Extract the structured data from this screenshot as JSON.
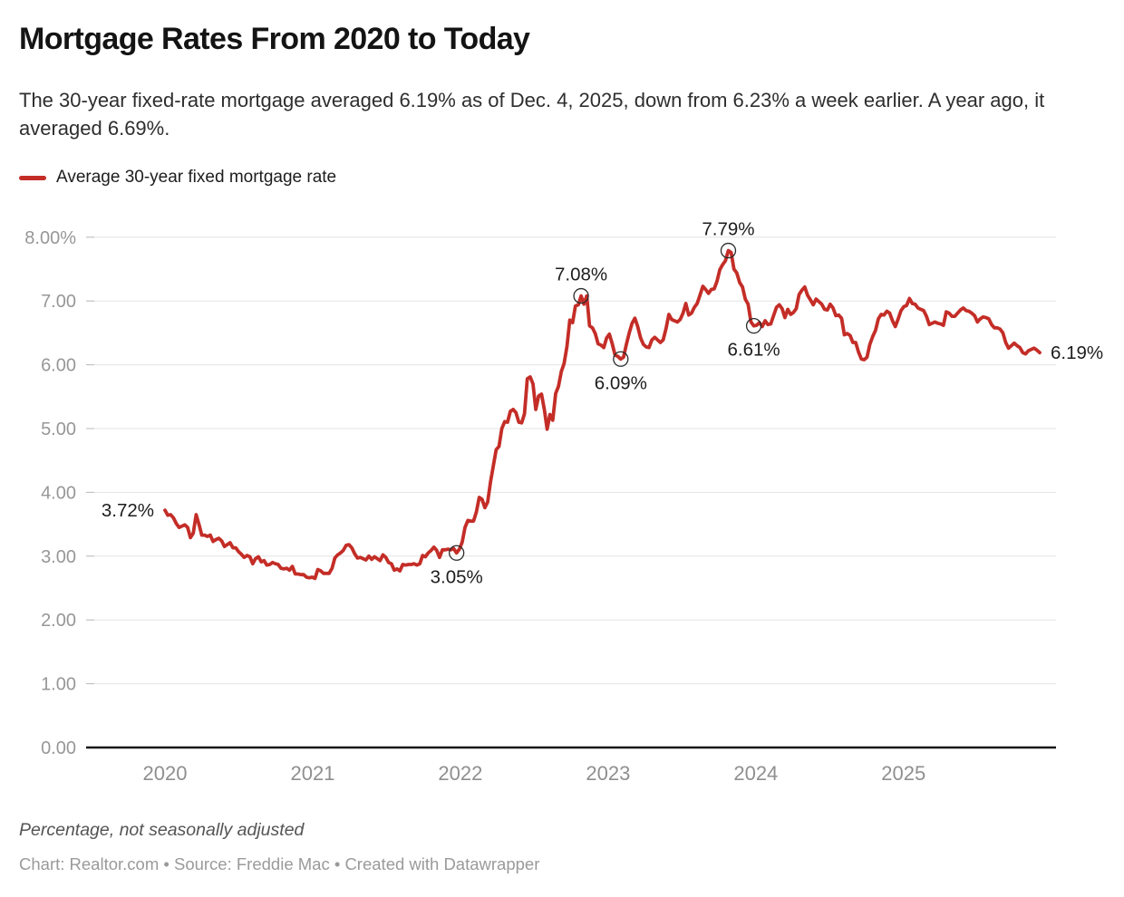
{
  "header": {
    "title": "Mortgage Rates From 2020 to Today",
    "description": "The 30-year fixed-rate mortgage averaged 6.19% as of Dec. 4, 2025, down from 6.23% a week earlier. A year ago, it averaged 6.69%."
  },
  "legend": {
    "items": [
      {
        "label": "Average 30-year fixed mortgage rate",
        "color": "#c42d27"
      }
    ]
  },
  "footer": {
    "note": "Percentage, not seasonally adjusted",
    "byline": "Chart: Realtor.com • Source: Freddie Mac • Created with Datawrapper"
  },
  "colors": {
    "line": "#c42d27",
    "grid": "#e4e4e4",
    "grid_tick": "#bbbbbb",
    "zero_axis": "#161616",
    "axis_label": "#979797",
    "x_axis_label": "#8f8f8f",
    "annotation": "#1d1d1d",
    "marker_stroke": "#2b2b2b"
  },
  "chart_data": {
    "type": "line",
    "title": "Mortgage Rates From 2020 to Today",
    "xlabel": "",
    "ylabel": "",
    "ylim": [
      0,
      8
    ],
    "grid": "horizontal",
    "legend_position": "top-left",
    "x_start_year": 2020,
    "frequency": "weekly",
    "end_label": "Dec. 4, 2025",
    "y_ticks": [
      {
        "value": 8,
        "label": "8.00%"
      },
      {
        "value": 7,
        "label": "7.00"
      },
      {
        "value": 6,
        "label": "6.00"
      },
      {
        "value": 5,
        "label": "5.00"
      },
      {
        "value": 4,
        "label": "4.00"
      },
      {
        "value": 3,
        "label": "3.00"
      },
      {
        "value": 2,
        "label": "2.00"
      },
      {
        "value": 1,
        "label": "1.00"
      },
      {
        "value": 0,
        "label": "0.00"
      }
    ],
    "x_ticks": [
      {
        "year": 2020,
        "label": "2020"
      },
      {
        "year": 2021,
        "label": "2021"
      },
      {
        "year": 2022,
        "label": "2022"
      },
      {
        "year": 2023,
        "label": "2023"
      },
      {
        "year": 2024,
        "label": "2024"
      },
      {
        "year": 2025,
        "label": "2025"
      }
    ],
    "series": [
      {
        "name": "Average 30-year fixed mortgage rate",
        "values": [
          3.72,
          3.64,
          3.65,
          3.6,
          3.51,
          3.45,
          3.47,
          3.49,
          3.45,
          3.29,
          3.36,
          3.65,
          3.5,
          3.33,
          3.33,
          3.31,
          3.33,
          3.23,
          3.26,
          3.28,
          3.24,
          3.15,
          3.18,
          3.21,
          3.13,
          3.13,
          3.07,
          3.03,
          2.98,
          3.01,
          2.99,
          2.88,
          2.96,
          2.99,
          2.91,
          2.93,
          2.86,
          2.87,
          2.9,
          2.88,
          2.87,
          2.81,
          2.8,
          2.81,
          2.78,
          2.84,
          2.72,
          2.72,
          2.71,
          2.71,
          2.67,
          2.66,
          2.67,
          2.65,
          2.79,
          2.77,
          2.73,
          2.73,
          2.73,
          2.81,
          2.97,
          3.02,
          3.05,
          3.09,
          3.17,
          3.18,
          3.13,
          3.04,
          2.97,
          2.98,
          2.96,
          2.94,
          3.0,
          2.95,
          2.99,
          2.96,
          2.93,
          3.02,
          2.98,
          2.9,
          2.88,
          2.78,
          2.8,
          2.77,
          2.87,
          2.86,
          2.87,
          2.87,
          2.88,
          2.86,
          2.88,
          3.01,
          2.99,
          3.05,
          3.09,
          3.14,
          3.09,
          2.98,
          3.1,
          3.1,
          3.11,
          3.1,
          3.12,
          3.05,
          3.11,
          3.22,
          3.45,
          3.56,
          3.55,
          3.55,
          3.69,
          3.92,
          3.89,
          3.76,
          3.85,
          4.16,
          4.42,
          4.67,
          4.72,
          5.0,
          5.11,
          5.1,
          5.27,
          5.3,
          5.25,
          5.1,
          5.09,
          5.23,
          5.78,
          5.81,
          5.7,
          5.3,
          5.51,
          5.54,
          5.3,
          4.99,
          5.22,
          5.13,
          5.55,
          5.66,
          5.89,
          6.02,
          6.29,
          6.7,
          6.66,
          6.92,
          6.94,
          7.08,
          6.95,
          7.08,
          6.61,
          6.58,
          6.49,
          6.33,
          6.31,
          6.27,
          6.42,
          6.48,
          6.33,
          6.15,
          6.13,
          6.09,
          6.12,
          6.32,
          6.5,
          6.65,
          6.73,
          6.6,
          6.42,
          6.32,
          6.28,
          6.27,
          6.39,
          6.43,
          6.39,
          6.35,
          6.39,
          6.57,
          6.79,
          6.71,
          6.69,
          6.67,
          6.71,
          6.81,
          6.96,
          6.78,
          6.81,
          6.9,
          6.96,
          7.09,
          7.23,
          7.18,
          7.12,
          7.18,
          7.19,
          7.31,
          7.49,
          7.57,
          7.63,
          7.79,
          7.76,
          7.5,
          7.44,
          7.29,
          7.22,
          7.03,
          6.95,
          6.67,
          6.61,
          6.62,
          6.66,
          6.6,
          6.69,
          6.63,
          6.64,
          6.77,
          6.9,
          6.94,
          6.88,
          6.74,
          6.87,
          6.79,
          6.82,
          6.88,
          7.1,
          7.17,
          7.22,
          7.09,
          7.02,
          6.94,
          7.03,
          6.99,
          6.95,
          6.87,
          6.86,
          6.95,
          6.89,
          6.77,
          6.78,
          6.73,
          6.47,
          6.49,
          6.46,
          6.35,
          6.35,
          6.2,
          6.09,
          6.08,
          6.12,
          6.32,
          6.44,
          6.54,
          6.72,
          6.79,
          6.78,
          6.84,
          6.81,
          6.69,
          6.6,
          6.72,
          6.85,
          6.91,
          6.93,
          7.04,
          6.96,
          6.95,
          6.89,
          6.87,
          6.85,
          6.76,
          6.63,
          6.65,
          6.67,
          6.65,
          6.64,
          6.62,
          6.83,
          6.81,
          6.76,
          6.76,
          6.81,
          6.86,
          6.89,
          6.85,
          6.84,
          6.81,
          6.77,
          6.67,
          6.72,
          6.75,
          6.74,
          6.72,
          6.63,
          6.58,
          6.58,
          6.56,
          6.5,
          6.35,
          6.26,
          6.3,
          6.34,
          6.3,
          6.27,
          6.19,
          6.17,
          6.22,
          6.24,
          6.26,
          6.23,
          6.19
        ]
      }
    ],
    "annotations": [
      {
        "text": "3.72%",
        "week": 0,
        "value": 3.72,
        "placement": "left",
        "circle": false
      },
      {
        "text": "3.05%",
        "week": 103,
        "value": 3.05,
        "placement": "below",
        "circle": true
      },
      {
        "text": "7.08%",
        "week": 147,
        "value": 7.08,
        "placement": "above",
        "circle": true
      },
      {
        "text": "6.09%",
        "week": 161,
        "value": 6.09,
        "placement": "below",
        "circle": true
      },
      {
        "text": "7.79%",
        "week": 199,
        "value": 7.79,
        "placement": "above",
        "circle": true
      },
      {
        "text": "6.61%",
        "week": 208,
        "value": 6.61,
        "placement": "below",
        "circle": true
      },
      {
        "text": "6.19%",
        "week": 309,
        "value": 6.19,
        "placement": "right",
        "circle": false
      }
    ]
  }
}
